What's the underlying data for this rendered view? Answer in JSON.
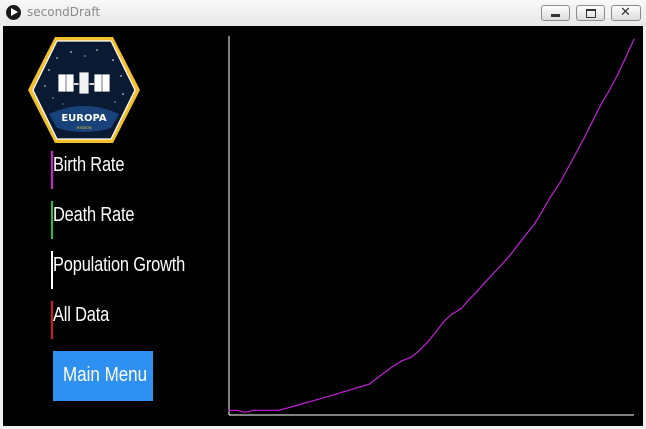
{
  "window": {
    "title": "secondDraft",
    "controls": [
      "minimize",
      "maximize",
      "close"
    ]
  },
  "logo": {
    "mission_name": "EUROPA",
    "mission_subtitle": "MISSION",
    "badge_color": "#f2c02e",
    "field_color": "#0b1a33"
  },
  "menu": {
    "items": [
      {
        "label": "Birth Rate",
        "color": "#d21dd9"
      },
      {
        "label": "Death Rate",
        "color": "#28c23a"
      },
      {
        "label": "Population Growth",
        "color": "#ffffff"
      },
      {
        "label": "All Data",
        "color": "#d8161e"
      }
    ],
    "main_menu_label": "Main Menu",
    "main_menu_color": "#2e90f0"
  },
  "chart_data": {
    "type": "line",
    "title": "",
    "xlabel": "",
    "ylabel": "",
    "grid": false,
    "series": [
      {
        "color": "#c31ed8",
        "x": [
          0,
          8,
          16,
          24,
          33,
          41,
          49,
          57,
          65,
          73,
          82,
          90,
          98,
          106,
          114,
          122,
          131,
          139,
          147,
          155,
          163,
          171,
          180,
          188,
          196,
          204,
          212,
          220,
          229,
          237,
          245,
          253,
          261,
          269,
          278,
          286,
          294,
          302,
          310,
          318,
          327,
          335,
          343,
          351,
          359,
          367,
          375,
          384,
          392,
          400
        ],
        "y": [
          2.2,
          2.3,
          1.3,
          2.3,
          2.3,
          2.3,
          2.3,
          3.3,
          4.4,
          5.6,
          6.8,
          7.9,
          9.1,
          10.2,
          11.4,
          12.6,
          13.9,
          15.2,
          18.3,
          21.3,
          24.1,
          26.5,
          28.2,
          31.5,
          35.5,
          40.3,
          45.6,
          49.2,
          51.8,
          56.3,
          60.4,
          64.8,
          69.1,
          73.2,
          78.3,
          83.4,
          88.5,
          93.5,
          100.0,
          106.8,
          113.5,
          120.8,
          128.1,
          135.4,
          143.4,
          151.2,
          157.9,
          166.2,
          174.7,
          183.4
        ]
      }
    ],
    "xlim": [
      0,
      400
    ],
    "ylim": [
      0,
      185
    ]
  }
}
